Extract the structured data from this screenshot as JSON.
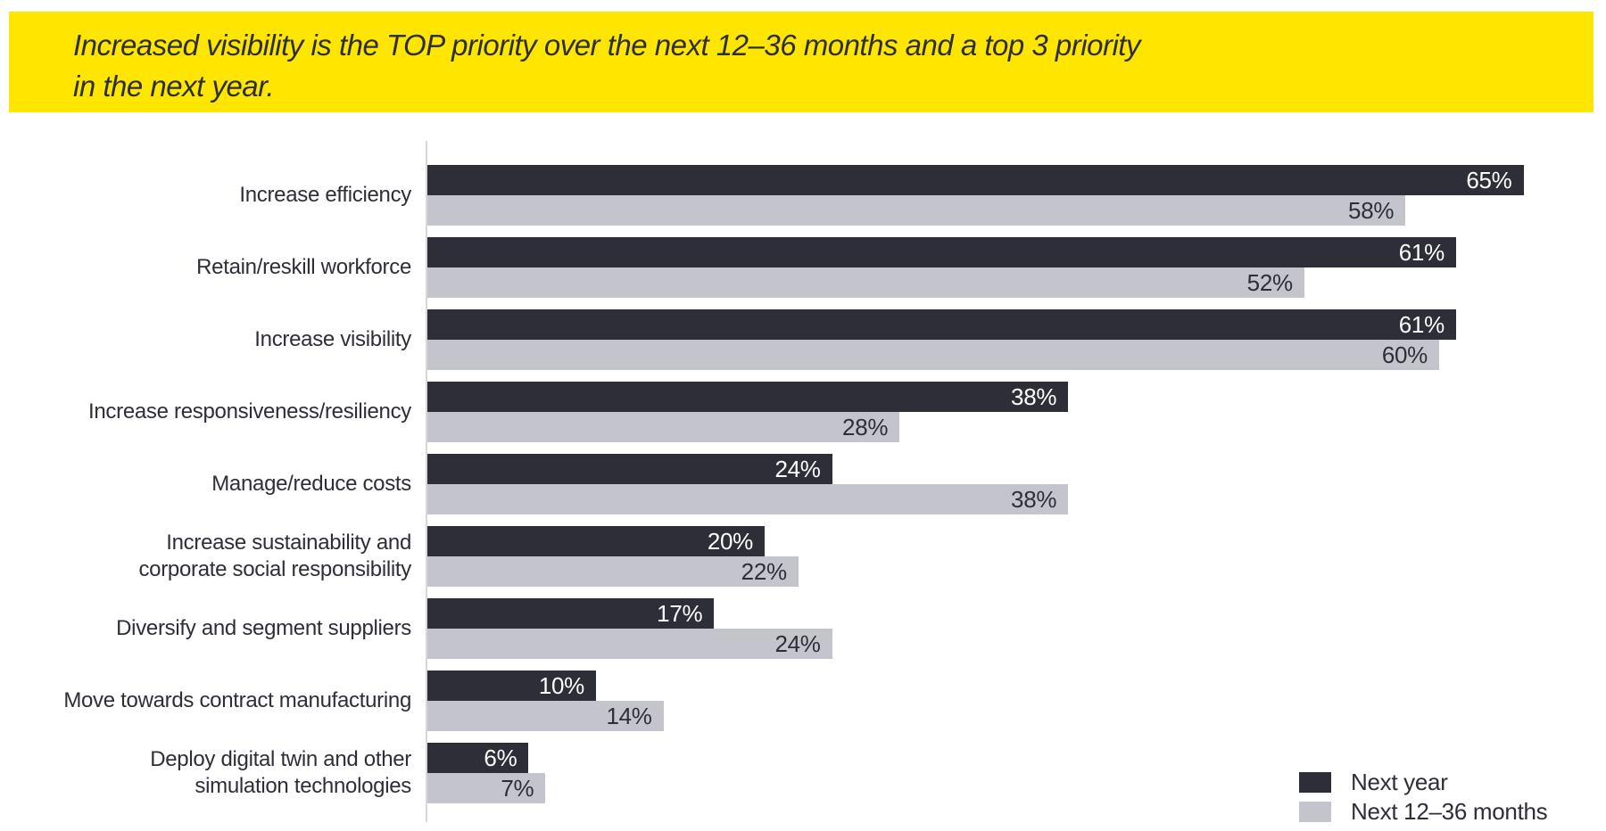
{
  "banner": {
    "line1": "Increased visibility is the TOP priority over the next 12–36 months and a top 3 priority",
    "line2": "in the next year.",
    "background": "#FFE600",
    "text_color": "#2E2E38"
  },
  "chart_data": {
    "type": "bar",
    "orientation": "horizontal",
    "title": "",
    "xlabel": "",
    "ylabel": "",
    "xlim": [
      0,
      65
    ],
    "grid": false,
    "legend_position": "bottom-right",
    "value_suffix": "%",
    "categories": [
      "Increase efficiency",
      "Retain/reskill workforce",
      "Increase visibility",
      "Increase responsiveness/resiliency",
      "Manage/reduce costs",
      "Increase sustainability and\ncorporate social responsibility",
      "Diversify and segment suppliers",
      "Move towards contract manufacturing",
      "Deploy digital twin and other\nsimulation technologies"
    ],
    "series": [
      {
        "name": "Next year",
        "color": "#2E2E38",
        "label_color": "#FFFFFF",
        "values": [
          65,
          61,
          61,
          38,
          24,
          20,
          17,
          10,
          6
        ]
      },
      {
        "name": "Next 12–36 months",
        "color": "#C4C4CD",
        "label_color": "#2E2E38",
        "values": [
          58,
          52,
          60,
          28,
          38,
          22,
          24,
          14,
          7
        ]
      }
    ],
    "text_color": "#2E2E38",
    "axis_line_color": "#D8D8D8"
  }
}
